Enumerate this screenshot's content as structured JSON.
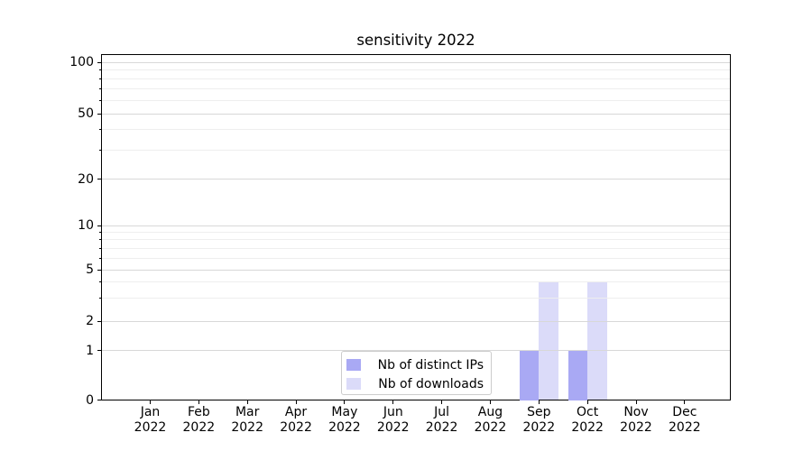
{
  "title": "sensitivity 2022",
  "colors": {
    "distinct_ips": "#a9a9f4",
    "downloads": "#dbdbf9",
    "grid_major": "#d8d8d8",
    "grid_minor": "#eeeeee",
    "axis": "#000000",
    "legend_border": "#cccccc",
    "text": "#000000"
  },
  "chart_data": {
    "type": "bar",
    "title": "sensitivity 2022",
    "months": [
      "Jan",
      "Feb",
      "Mar",
      "Apr",
      "May",
      "Jun",
      "Jul",
      "Aug",
      "Sep",
      "Oct",
      "Nov",
      "Dec"
    ],
    "year_label": "2022",
    "categories": [
      "Jan 2022",
      "Feb 2022",
      "Mar 2022",
      "Apr 2022",
      "May 2022",
      "Jun 2022",
      "Jul 2022",
      "Aug 2022",
      "Sep 2022",
      "Oct 2022",
      "Nov 2022",
      "Dec 2022"
    ],
    "series": [
      {
        "name": "Nb of distinct IPs",
        "key": "distinct-ips",
        "color_key": "distinct_ips",
        "values": [
          0,
          0,
          0,
          0,
          0,
          0,
          0,
          0,
          1,
          1,
          0,
          0
        ]
      },
      {
        "name": "Nb of downloads",
        "key": "downloads",
        "color_key": "downloads",
        "values": [
          0,
          0,
          0,
          0,
          0,
          0,
          0,
          0,
          4,
          4,
          0,
          0
        ]
      }
    ],
    "y_axis": {
      "scale": "symlog-like",
      "major_ticks": [
        0,
        1,
        2,
        5,
        10,
        20,
        50,
        100
      ],
      "minor_ticks": [
        3,
        4,
        6,
        7,
        8,
        9,
        30,
        40,
        60,
        70,
        80,
        90
      ],
      "ylim": [
        0,
        112
      ],
      "grid": "on"
    },
    "x_axis": {
      "label_lines": 2,
      "grid": "off"
    },
    "legend": {
      "position": "lower center"
    }
  }
}
